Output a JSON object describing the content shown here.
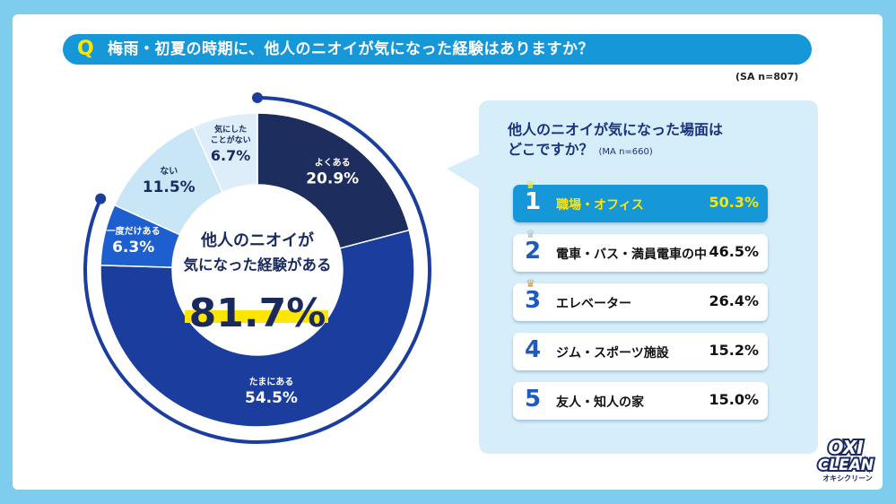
{
  "question": {
    "mark": "Q",
    "text": "梅雨・初夏の時期に、他人のニオイが気になった経験はありますか？",
    "sample": "(SA n=807)"
  },
  "center": {
    "line1": "他人のニオイが",
    "line2": "気になった経験がある",
    "total": "81.7%"
  },
  "chart_data": {
    "type": "pie",
    "categories": [
      "よくある",
      "たまにある",
      "一度だけある",
      "ない",
      "気にしたことがない"
    ],
    "values": [
      20.9,
      54.5,
      6.3,
      11.5,
      6.7
    ],
    "labels": [
      "よくある",
      "たまにある",
      "一度だけある",
      "ない",
      "気にした ことがない"
    ],
    "value_labels": [
      "20.9%",
      "54.5%",
      "6.3%",
      "11.5%",
      "6.7%"
    ]
  },
  "colors": {
    "よくある": "#1c2d5e",
    "たまにある": "#1a3d9e",
    "一度だけある": "#1e5fd0",
    "ない": "#c9e6f7",
    "気にしたことがない": "#ddeefa",
    "accent": "#1597d8",
    "highlight": "#ffe600"
  },
  "sub": {
    "title_line1": "他人のニオイが気になった場面は",
    "title_line2": "どこですか？",
    "sample": "(MA n=660)",
    "ranks": [
      {
        "rank": "1",
        "label": "職場・オフィス",
        "value": "50.3%"
      },
      {
        "rank": "2",
        "label": "電車・バス・満員電車の中",
        "value": "46.5%"
      },
      {
        "rank": "3",
        "label": "エレベーター",
        "value": "26.4%"
      },
      {
        "rank": "4",
        "label": "ジム・スポーツ施設",
        "value": "15.2%"
      },
      {
        "rank": "5",
        "label": "友人・知人の家",
        "value": "15.0%"
      }
    ]
  },
  "logo": {
    "line1": "OXI",
    "line2": "CLEAN",
    "line3": "オキシクリーン"
  }
}
